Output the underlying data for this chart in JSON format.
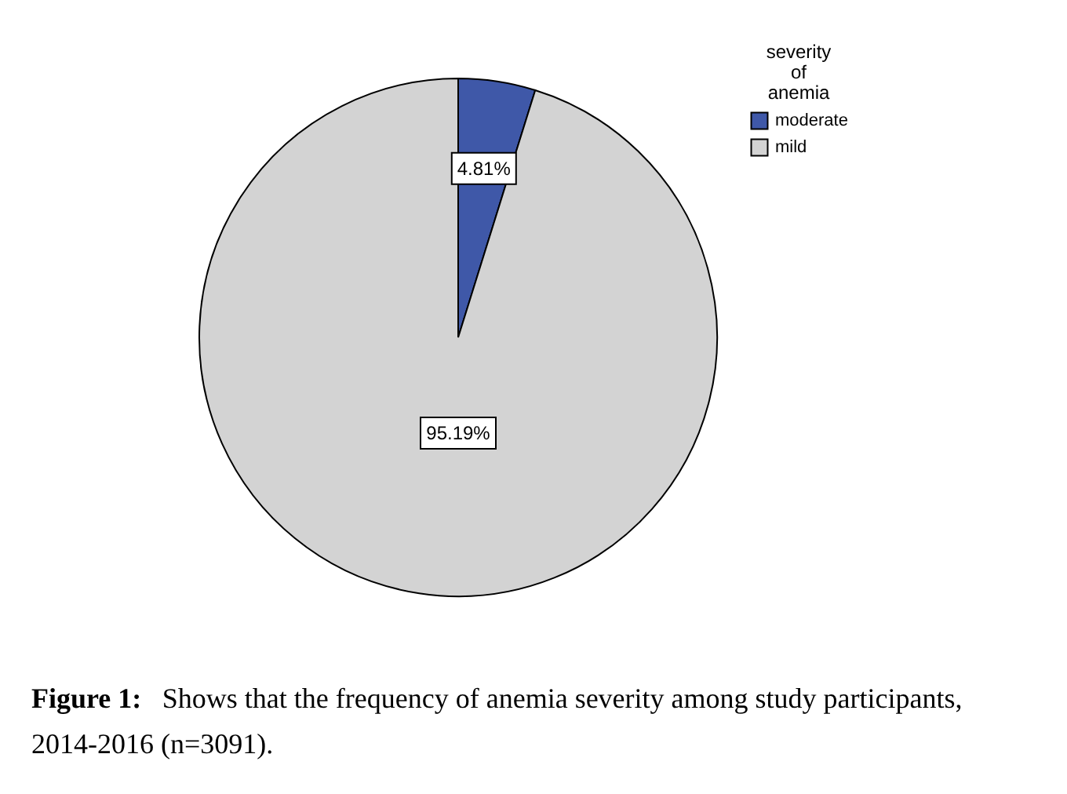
{
  "chart_data": {
    "type": "pie",
    "categories": [
      "moderate",
      "mild"
    ],
    "values": [
      4.81,
      95.19
    ],
    "colors": [
      "#3f58a8",
      "#d3d3d3"
    ],
    "value_labels": [
      "4.81%",
      "95.19%"
    ],
    "legend_title": "severity of anemia",
    "legend": "top right",
    "annotations": [
      "Figure 1:",
      "Shows that the frequency of anemia severity among study participants, 2014-2016 (n=3091)."
    ]
  }
}
